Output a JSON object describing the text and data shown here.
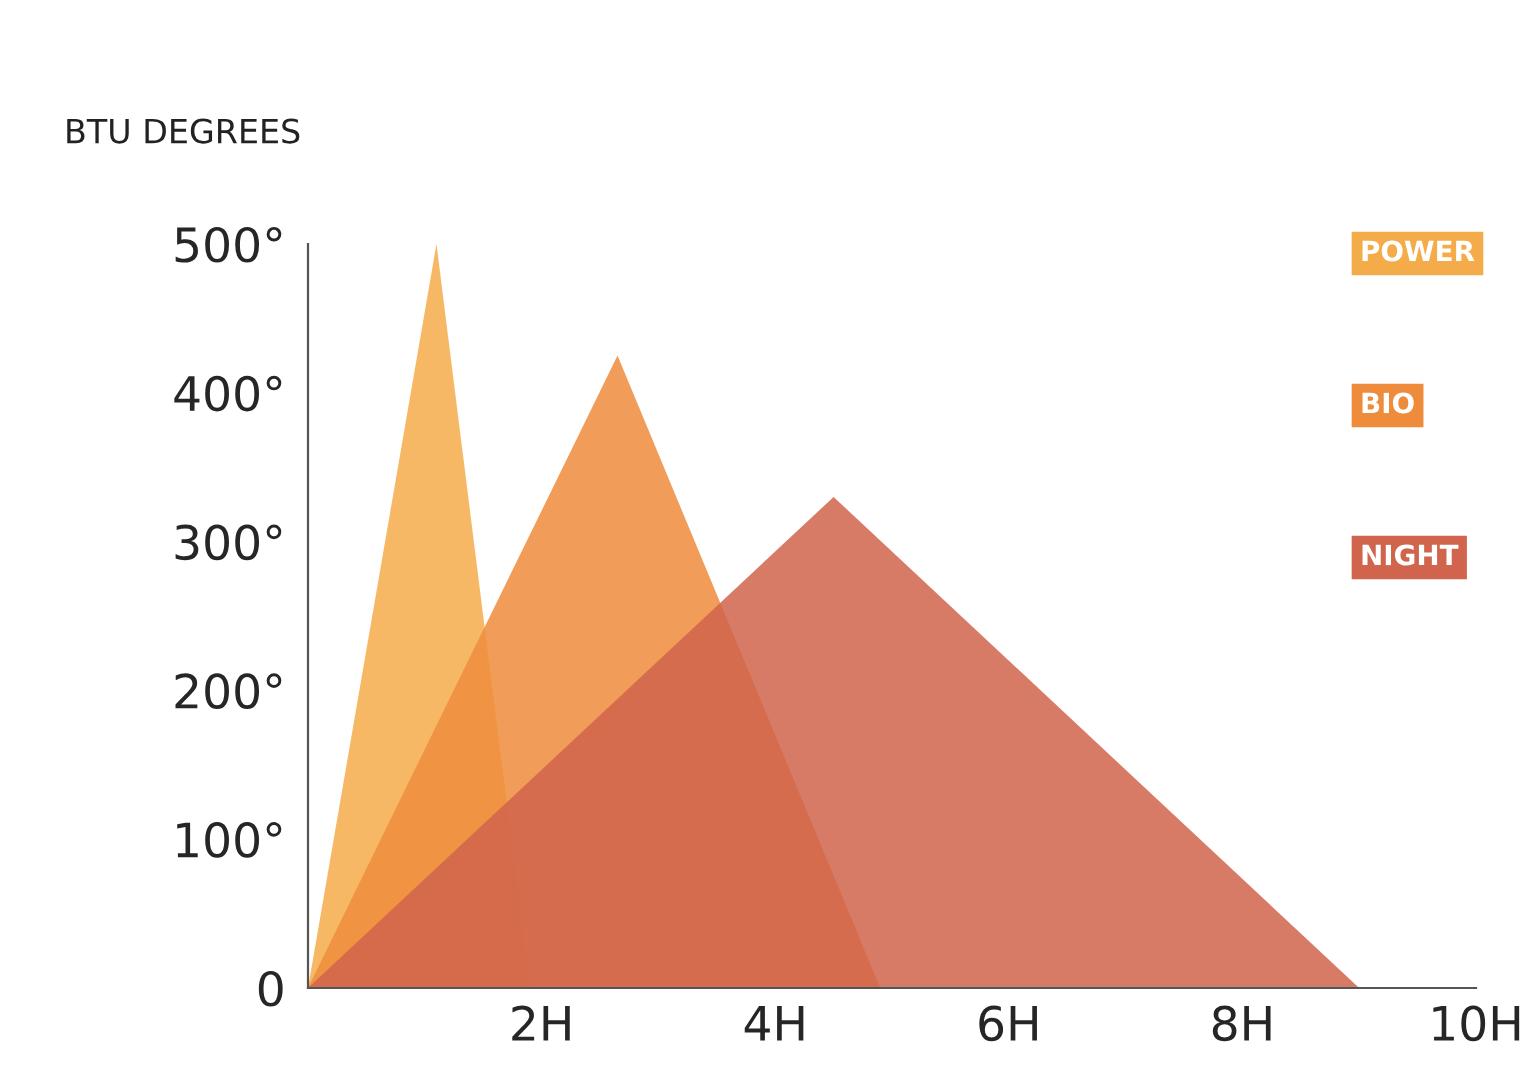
{
  "chart_data": {
    "type": "area",
    "ylabel": "BTU DEGREES",
    "series": [
      {
        "name": "POWER",
        "color": "#f4ac4a",
        "x": [
          0,
          1.1,
          1.9
        ],
        "values": [
          0,
          500,
          0
        ]
      },
      {
        "name": "BIO",
        "color": "#ee8c3c",
        "x": [
          0,
          2.65,
          4.9
        ],
        "values": [
          0,
          425,
          0
        ]
      },
      {
        "name": "NIGHT",
        "color": "#d0644c",
        "x": [
          0,
          4.5,
          9.0
        ],
        "values": [
          0,
          330,
          0
        ]
      }
    ],
    "xlim": [
      0,
      10
    ],
    "xticks": [
      {
        "value": 2,
        "label": "2H"
      },
      {
        "value": 4,
        "label": "4H"
      },
      {
        "value": 6,
        "label": "6H"
      },
      {
        "value": 8,
        "label": "8H"
      },
      {
        "value": 10,
        "label": "10H"
      }
    ],
    "ylim": [
      0,
      500
    ],
    "yticks": [
      0,
      {
        "value": 100,
        "label": "100°"
      },
      {
        "value": 200,
        "label": "200°"
      },
      {
        "value": 300,
        "label": "300°"
      },
      {
        "value": 400,
        "label": "400°"
      },
      {
        "value": 500,
        "label": "500°"
      }
    ],
    "grid": false,
    "legend": "top right"
  }
}
